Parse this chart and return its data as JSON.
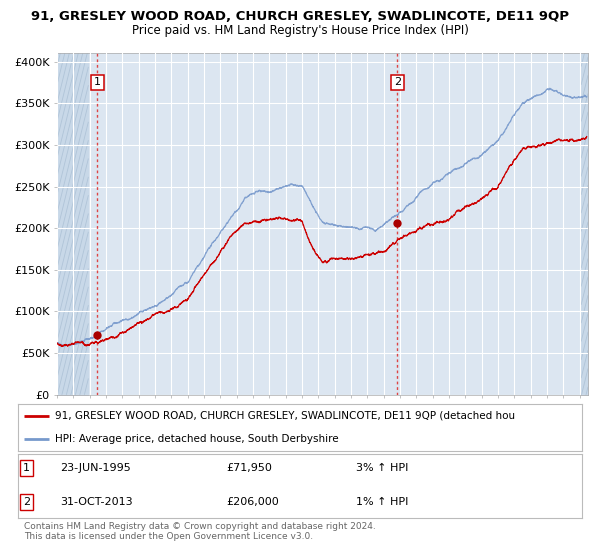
{
  "title1": "91, GRESLEY WOOD ROAD, CHURCH GRESLEY, SWADLINCOTE, DE11 9QP",
  "title2": "Price paid vs. HM Land Registry's House Price Index (HPI)",
  "background_color": "#dce6f1",
  "hatch_color": "#c8d8e8",
  "grid_color": "#ffffff",
  "fig_bg": "#ffffff",
  "ylim": [
    0,
    410000
  ],
  "yticks": [
    0,
    50000,
    100000,
    150000,
    200000,
    250000,
    300000,
    350000,
    400000
  ],
  "ytick_labels": [
    "£0",
    "£50K",
    "£100K",
    "£150K",
    "£200K",
    "£250K",
    "£300K",
    "£350K",
    "£400K"
  ],
  "xlim_start": 1993.0,
  "xlim_end": 2025.5,
  "sale1_date": 1995.47,
  "sale1_price": 71950,
  "sale2_date": 2013.83,
  "sale2_price": 206000,
  "red_line_color": "#cc0000",
  "blue_line_color": "#7799cc",
  "dot_color": "#aa0000",
  "vline_color": "#dd4444",
  "legend_label1": "91, GRESLEY WOOD ROAD, CHURCH GRESLEY, SWADLINCOTE, DE11 9QP (detached hou",
  "legend_label2": "HPI: Average price, detached house, South Derbyshire",
  "info1_num": "1",
  "info1_date": "23-JUN-1995",
  "info1_price": "£71,950",
  "info1_hpi": "3% ↑ HPI",
  "info2_num": "2",
  "info2_date": "31-OCT-2013",
  "info2_price": "£206,000",
  "info2_hpi": "1% ↑ HPI",
  "footnote": "Contains HM Land Registry data © Crown copyright and database right 2024.\nThis data is licensed under the Open Government Licence v3.0."
}
